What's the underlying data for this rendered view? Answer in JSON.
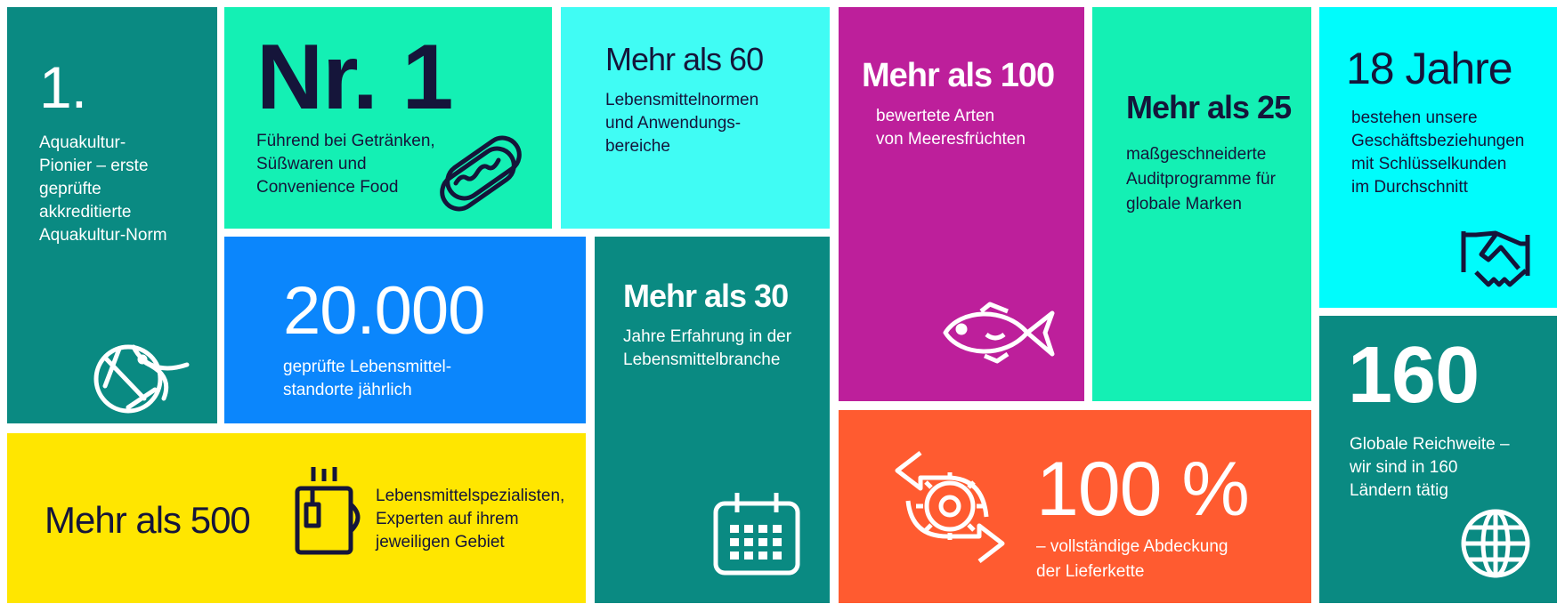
{
  "colors": {
    "teal": "#0a8a82",
    "green": "#14f0b4",
    "cyan_light": "#40fcf4",
    "cyan": "#00fcfc",
    "magenta": "#bd1f9b",
    "blue": "#0b86fc",
    "yellow": "#ffe600",
    "orange": "#ff5b30",
    "text_dark": "#15153a",
    "text_light": "#ffffff"
  },
  "tiles": {
    "aquaculture": {
      "headline": "1.",
      "text": [
        "Aquakultur-",
        "Pionier – erste",
        "geprüfte",
        "akkreditierte",
        "Aquakultur-Norm"
      ],
      "icon": "shrimp-icon"
    },
    "number_one": {
      "headline": "Nr. 1",
      "text": [
        "Führend bei Getränken,",
        "Süßwaren und",
        "Convenience Food"
      ],
      "icon": "hotdog-icon"
    },
    "standards": {
      "headline": "Mehr als 60",
      "text": [
        "Lebensmittelnormen",
        "und Anwendungs-",
        "bereiche"
      ]
    },
    "seafood": {
      "headline": "Mehr als 100",
      "text": [
        "bewertete Arten",
        "von Meeresfrüchten"
      ],
      "icon": "fish-icon"
    },
    "audit": {
      "headline": "Mehr als 25",
      "text": [
        "maßgeschneiderte",
        "Auditprogramme für",
        "globale Marken"
      ]
    },
    "years": {
      "headline": "18 Jahre",
      "text": [
        "bestehen unsere",
        "Geschäftsbeziehungen",
        "mit Schlüsselkunden",
        "im Durchschnitt"
      ],
      "icon": "handshake-icon"
    },
    "sites": {
      "headline": "20.000",
      "text": [
        "geprüfte Lebensmittel-",
        "standorte jährlich"
      ]
    },
    "experience": {
      "headline": "Mehr als 30",
      "text": [
        "Jahre Erfahrung in der",
        "Lebensmittelbranche"
      ],
      "icon": "calendar-icon"
    },
    "specialists": {
      "headline": "Mehr als 500",
      "text": [
        "Lebensmittelspezialisten,",
        "Experten auf ihrem",
        "jeweiligen Gebiet"
      ],
      "icon": "mug-icon"
    },
    "supply_chain": {
      "headline": "100 %",
      "text": [
        "– vollständige Abdeckung",
        "der Lieferkette"
      ],
      "icon": "gear-cycle-icon"
    },
    "countries": {
      "headline": "160",
      "text": [
        "Globale Reichweite –",
        "wir sind in 160",
        "Ländern tätig"
      ],
      "icon": "globe-icon"
    }
  }
}
